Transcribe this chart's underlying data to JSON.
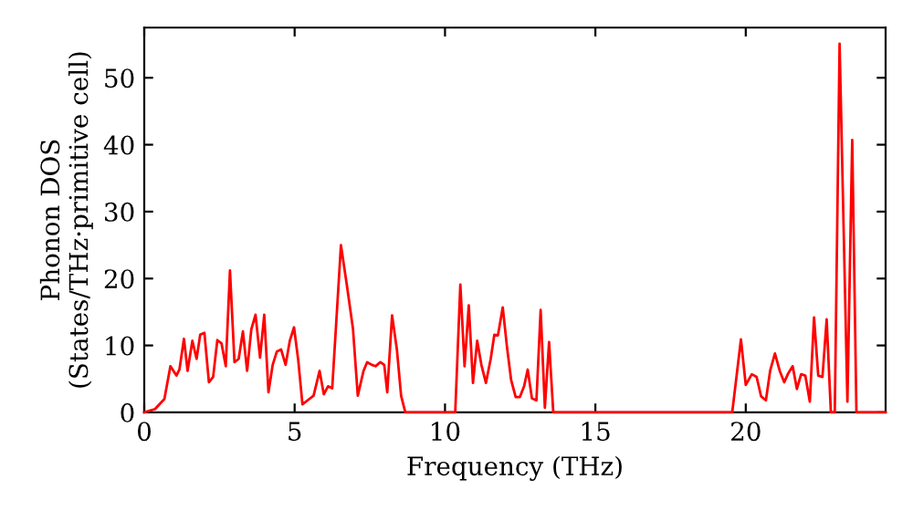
{
  "chart_data": {
    "type": "line",
    "xlabel": "Frequency (THz)",
    "ylabel": "Phonon DOS\n(States/THz·primitive cell)",
    "xlim": [
      0,
      24.65
    ],
    "ylim": [
      0,
      57.5
    ],
    "xticks": [
      0,
      5,
      10,
      15,
      20
    ],
    "yticks": [
      0,
      10,
      20,
      30,
      40,
      50
    ],
    "grid": false,
    "legend": false,
    "marker": "none",
    "line_style": "solid",
    "series": [
      {
        "color": "#ff0000",
        "x": [
          0,
          0.36,
          0.67,
          0.87,
          1.07,
          1.17,
          1.32,
          1.44,
          1.6,
          1.74,
          1.86,
          2.0,
          2.15,
          2.29,
          2.43,
          2.57,
          2.71,
          2.85,
          3.0,
          3.14,
          3.28,
          3.42,
          3.56,
          3.7,
          3.85,
          3.99,
          4.13,
          4.27,
          4.41,
          4.55,
          4.7,
          4.84,
          4.98,
          5.12,
          5.26,
          5.43,
          5.63,
          5.83,
          5.97,
          6.11,
          6.25,
          6.54,
          6.74,
          6.94,
          7.1,
          7.29,
          7.41,
          7.57,
          7.69,
          7.85,
          7.98,
          8.08,
          8.24,
          8.4,
          8.54,
          8.68,
          10.34,
          10.51,
          10.65,
          10.79,
          10.93,
          11.07,
          11.21,
          11.36,
          11.52,
          11.64,
          11.76,
          11.92,
          12.06,
          12.2,
          12.35,
          12.49,
          12.63,
          12.75,
          12.89,
          13.04,
          13.18,
          13.32,
          13.46,
          13.6,
          19.55,
          19.84,
          20.0,
          20.2,
          20.36,
          20.51,
          20.67,
          20.81,
          20.97,
          21.13,
          21.28,
          21.42,
          21.56,
          21.7,
          21.84,
          21.98,
          22.13,
          22.27,
          22.41,
          22.55,
          22.69,
          22.83,
          22.96,
          23.12,
          23.38,
          23.54,
          23.68,
          24.65
        ],
        "values": [
          0,
          0.5,
          2,
          6.9,
          5.5,
          6.4,
          11,
          6.2,
          10.7,
          8,
          11.6,
          11.9,
          4.5,
          5.3,
          10.8,
          10.3,
          6.9,
          21.2,
          7.5,
          8,
          12.1,
          6.2,
          12.4,
          14.6,
          8.2,
          14.6,
          3,
          7.1,
          9.1,
          9.4,
          7.1,
          10.7,
          12.7,
          7.8,
          1.2,
          1.8,
          2.5,
          6.2,
          2.7,
          3.9,
          3.6,
          25,
          18.9,
          12.5,
          2.5,
          6.2,
          7.5,
          7.1,
          6.9,
          7.5,
          7.1,
          3,
          14.5,
          9.4,
          2.5,
          0,
          0,
          19.1,
          6.9,
          16,
          4.4,
          10.7,
          7.1,
          4.4,
          8,
          11.6,
          11.5,
          15.7,
          9.8,
          4.8,
          2.3,
          2.3,
          3.9,
          6.4,
          2.1,
          1.8,
          15.3,
          0.7,
          10.5,
          0,
          0,
          10.9,
          4.1,
          5.7,
          5.3,
          2.4,
          1.8,
          6.2,
          8.8,
          6.2,
          4.5,
          5.9,
          6.9,
          3.5,
          5.7,
          5.5,
          1.6,
          14.2,
          5.5,
          5.3,
          13.9,
          0,
          0,
          55.1,
          1.6,
          40.7,
          0,
          0
        ]
      }
    ]
  }
}
